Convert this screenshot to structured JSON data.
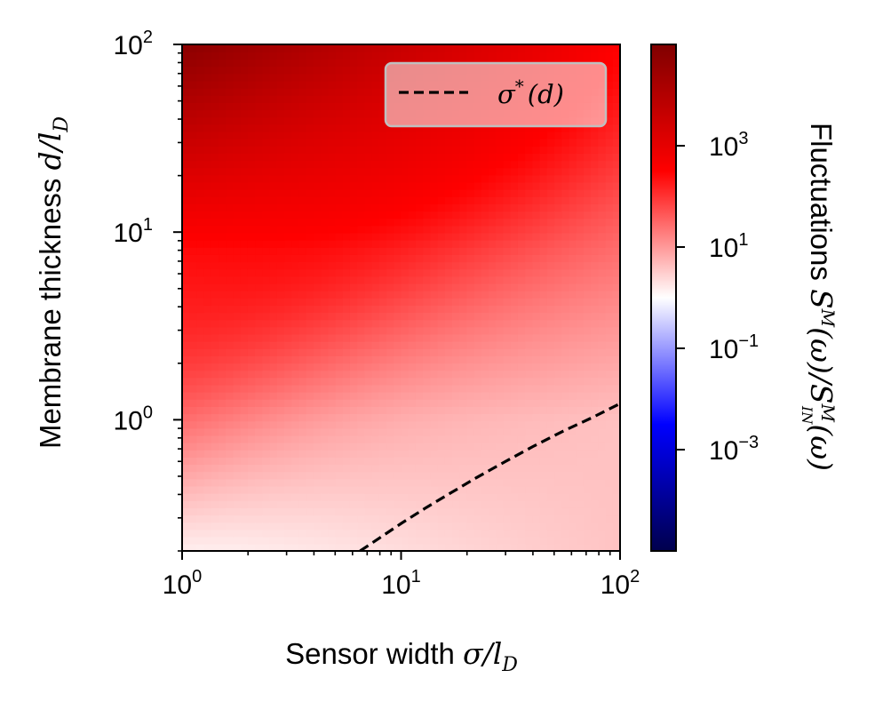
{
  "chart_data": {
    "type": "heatmap",
    "xlabel_text": "Sensor width ",
    "xlabel_math": "σ/l",
    "xlabel_sub": "D",
    "ylabel_text": "Membrane thickness ",
    "ylabel_math": "d/l",
    "ylabel_sub": "D",
    "colorbar_label_text": "Fluctuations ",
    "colorbar_label_math": "S",
    "colorbar_label_math_sup": "M",
    "colorbar_label_math_rest": "(ω)/S",
    "colorbar_label_math_sup2": "M",
    "colorbar_label_math_sub2": "IN",
    "colorbar_label_math_end": "(ω)",
    "x_scale": "log",
    "y_scale": "log",
    "xlim": [
      1,
      100
    ],
    "ylim": [
      0.2,
      100
    ],
    "colorbar_scale": "log",
    "colorbar_range": [
      1e-05,
      100000
    ],
    "colormap": "seismic",
    "x_ticks": [
      {
        "value": 1,
        "base": "10",
        "exp": "0"
      },
      {
        "value": 10,
        "base": "10",
        "exp": "1"
      },
      {
        "value": 100,
        "base": "10",
        "exp": "2"
      }
    ],
    "y_ticks": [
      {
        "value": 1,
        "base": "10",
        "exp": "0"
      },
      {
        "value": 10,
        "base": "10",
        "exp": "1"
      },
      {
        "value": 100,
        "base": "10",
        "exp": "2"
      }
    ],
    "colorbar_ticks": [
      {
        "value": 0.001,
        "base": "10",
        "exp": "−3"
      },
      {
        "value": 0.1,
        "base": "10",
        "exp": "−1"
      },
      {
        "value": 10,
        "base": "10",
        "exp": "1"
      },
      {
        "value": 1000,
        "base": "10",
        "exp": "3"
      }
    ],
    "legend": {
      "position": "upper right",
      "entries": [
        {
          "label_main": "σ",
          "label_sup": "*",
          "label_rest": "(d)",
          "style": "dashed",
          "color": "#000000"
        }
      ]
    },
    "series": [
      {
        "type": "line",
        "style": "dashed",
        "x": [
          6.5,
          8,
          10,
          13,
          17,
          22,
          30,
          40,
          55,
          75,
          100
        ],
        "y": [
          0.2,
          0.235,
          0.28,
          0.34,
          0.41,
          0.49,
          0.6,
          0.72,
          0.87,
          1.03,
          1.22
        ]
      }
    ],
    "field_samples": [
      {
        "x": 1,
        "y": 100,
        "value": 60000
      },
      {
        "x": 1,
        "y": 8,
        "value": 150
      },
      {
        "x": 1,
        "y": 1,
        "value": 8
      },
      {
        "x": 1,
        "y": 0.2,
        "value": 1.2
      },
      {
        "x": 100,
        "y": 100,
        "value": 200
      },
      {
        "x": 100,
        "y": 1,
        "value": 4
      }
    ]
  }
}
